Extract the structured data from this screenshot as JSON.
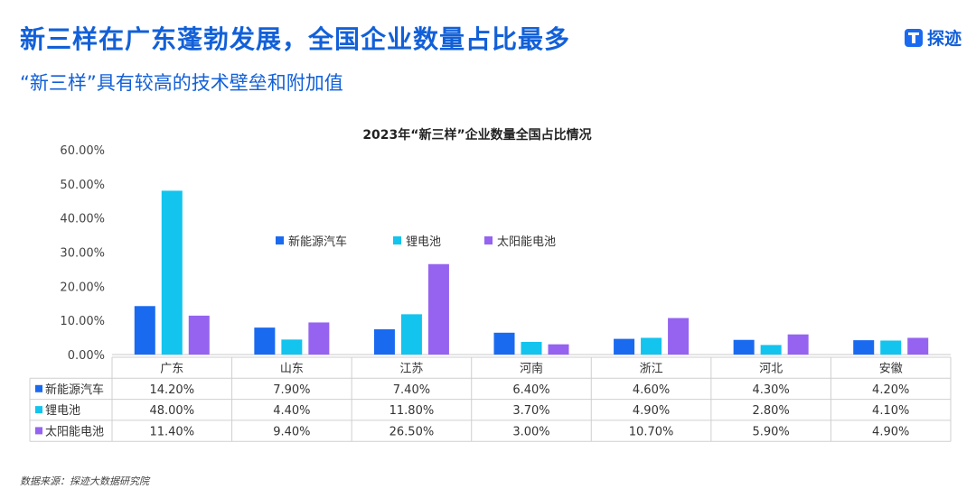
{
  "page": {
    "headline": "新三样在广东蓬勃发展，全国企业数量占比最多",
    "subheadline": "“新三样”具有较高的技术壁垒和附加值",
    "brand": "探迹",
    "source": "数据来源：探迹大数据研究院"
  },
  "chart_data": {
    "type": "bar",
    "title": "2023年“新三样”企业数量全国占比情况",
    "categories": [
      "广东",
      "山东",
      "江苏",
      "河南",
      "浙江",
      "河北",
      "安徽"
    ],
    "series": [
      {
        "name": "新能源汽车",
        "color": "#1a6af0",
        "values": [
          14.2,
          7.9,
          7.4,
          6.4,
          4.6,
          4.3,
          4.2
        ]
      },
      {
        "name": "锂电池",
        "color": "#12c4ee",
        "values": [
          48.0,
          4.4,
          11.8,
          3.7,
          4.9,
          2.8,
          4.1
        ]
      },
      {
        "name": "太阳能电池",
        "color": "#9563f0",
        "values": [
          11.4,
          9.4,
          26.5,
          3.0,
          10.7,
          5.9,
          4.9
        ]
      }
    ],
    "table_values": [
      [
        "14.20%",
        "7.90%",
        "7.40%",
        "6.40%",
        "4.60%",
        "4.30%",
        "4.20%"
      ],
      [
        "48.00%",
        "4.40%",
        "11.80%",
        "3.70%",
        "4.90%",
        "2.80%",
        "4.10%"
      ],
      [
        "11.40%",
        "9.40%",
        "26.50%",
        "3.00%",
        "10.70%",
        "5.90%",
        "4.90%"
      ]
    ],
    "yticks": [
      "0.00%",
      "10.00%",
      "20.00%",
      "30.00%",
      "40.00%",
      "50.00%",
      "60.00%"
    ],
    "ylim": [
      0,
      60
    ],
    "grid": false,
    "legend_position": "inside-upper-center",
    "data_table": true
  }
}
